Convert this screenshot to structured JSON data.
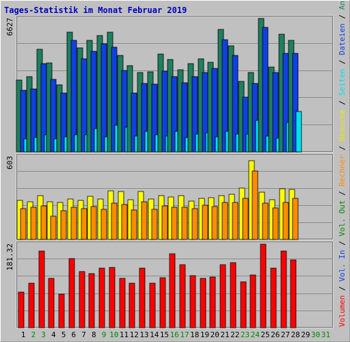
{
  "chart_data": [
    {
      "type": "bar",
      "title": "Tages-Statistik im Monat Februar 2019",
      "categories": [
        "1",
        "2",
        "3",
        "4",
        "5",
        "6",
        "7",
        "8",
        "9",
        "10",
        "11",
        "12",
        "13",
        "14",
        "15",
        "16",
        "17",
        "18",
        "19",
        "20",
        "21",
        "22",
        "23",
        "24",
        "25",
        "26",
        "27",
        "28",
        "29",
        "30",
        "31"
      ],
      "weekend_days": [
        "2",
        "3",
        "9",
        "10",
        "16",
        "17",
        "23",
        "24",
        "30",
        "31"
      ],
      "y_max_label": "6627",
      "ylim": [
        0,
        6627
      ],
      "series": [
        {
          "name": "Anfragen",
          "color": "#1f7f5f",
          "values": [
            3555,
            3753,
            5100,
            4402,
            3325,
            5959,
            5167,
            5533,
            5763,
            5935,
            4808,
            4282,
            3946,
            3963,
            4872,
            4585,
            4069,
            4380,
            4637,
            4461,
            6095,
            5271,
            3492,
            3944,
            6627,
            4198,
            5862,
            5541,
            null,
            null,
            null
          ]
        },
        {
          "name": "Dateien",
          "color": "#1040e0",
          "values": [
            3075,
            3136,
            4374,
            3603,
            2917,
            5530,
            4619,
            4998,
            5362,
            5198,
            4039,
            2923,
            3406,
            3356,
            4002,
            3743,
            3433,
            3729,
            3929,
            4158,
            5569,
            4789,
            2732,
            3389,
            6171,
            3948,
            4877,
            4893,
            null,
            null,
            null
          ]
        },
        {
          "name": "Seiten",
          "color": "#00e0f0",
          "values": [
            648,
            717,
            853,
            658,
            748,
            859,
            841,
            1147,
            751,
            1314,
            1234,
            777,
            1024,
            836,
            774,
            1007,
            719,
            880,
            954,
            737,
            1009,
            891,
            896,
            1566,
            772,
            668,
            1447,
            2020,
            null,
            null,
            null
          ]
        }
      ]
    },
    {
      "type": "bar",
      "categories": [
        "1",
        "2",
        "3",
        "4",
        "5",
        "6",
        "7",
        "8",
        "9",
        "10",
        "11",
        "12",
        "13",
        "14",
        "15",
        "16",
        "17",
        "18",
        "19",
        "20",
        "21",
        "22",
        "23",
        "24",
        "25",
        "26",
        "27",
        "28",
        "29",
        "30",
        "31"
      ],
      "y_max_label": "603",
      "ylim": [
        0,
        603
      ],
      "series": [
        {
          "name": "Besuche",
          "color": "#ffff00",
          "values": [
            284,
            272,
            318,
            273,
            270,
            295,
            282,
            312,
            296,
            352,
            350,
            291,
            348,
            294,
            320,
            307,
            318,
            281,
            301,
            303,
            320,
            331,
            372,
            574,
            346,
            291,
            369,
            365,
            null,
            null,
            null
          ]
        },
        {
          "name": "Rechner",
          "color": "#ff8c00",
          "values": [
            226,
            233,
            245,
            170,
            208,
            235,
            223,
            240,
            219,
            262,
            254,
            216,
            276,
            218,
            245,
            235,
            232,
            223,
            251,
            238,
            268,
            267,
            299,
            500,
            265,
            230,
            271,
            301,
            null,
            null,
            null
          ]
        }
      ]
    },
    {
      "type": "bar",
      "categories": [
        "1",
        "2",
        "3",
        "4",
        "5",
        "6",
        "7",
        "8",
        "9",
        "10",
        "11",
        "12",
        "13",
        "14",
        "15",
        "16",
        "17",
        "18",
        "19",
        "20",
        "21",
        "22",
        "23",
        "24",
        "25",
        "26",
        "27",
        "28",
        "29",
        "30",
        "31"
      ],
      "y_max_label": "181.32",
      "ylim": [
        0,
        181.32
      ],
      "series": [
        {
          "name": "Volumen",
          "color": "#ff0000",
          "values": [
            77,
            96,
            167,
            107,
            73,
            150,
            122,
            117,
            130,
            131,
            107,
            96,
            129,
            96,
            108,
            161,
            137,
            113,
            107,
            110,
            137,
            141,
            100,
            114,
            181.32,
            130,
            167,
            147,
            null,
            null,
            null
          ]
        }
      ]
    }
  ],
  "right_legend": {
    "separator": "/",
    "panel_labels": [
      "Vol. Out",
      "Vol. In"
    ]
  }
}
